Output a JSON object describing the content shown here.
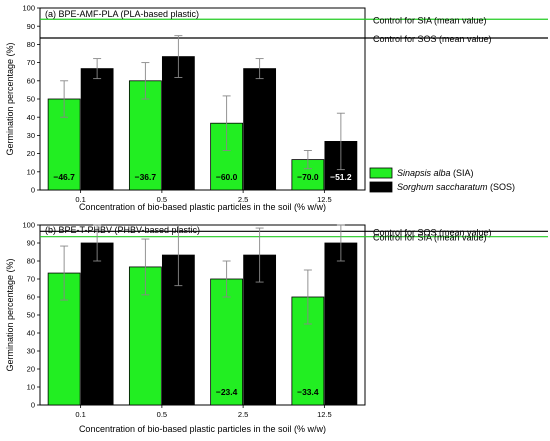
{
  "colors": {
    "sia": "#22ee22",
    "sos": "#000000",
    "sia_control": "#22cc22",
    "sos_control": "#000000"
  },
  "legend": {
    "items": [
      {
        "species": "Sinapsis alba",
        "abbr": " (SIA)",
        "color": "#22ee22"
      },
      {
        "species": "Sorghum saccharatum",
        "abbr": " (SOS)",
        "color": "#000000"
      }
    ]
  },
  "chart_data": [
    {
      "type": "bar",
      "title": "(a) BPE-AMF-PLA (PLA-based plastic)",
      "xlabel": "Concentration of bio-based plastic particles in the soil (% w/w)",
      "ylabel": "Germination percentage (%)",
      "ylim": [
        0,
        100
      ],
      "yticks": [
        0,
        10,
        20,
        30,
        40,
        50,
        60,
        70,
        80,
        90,
        100
      ],
      "categories": [
        "0.1",
        "0.5",
        "2.5",
        "12.5"
      ],
      "series": [
        {
          "name": "SIA",
          "values": [
            50,
            60,
            36.7,
            16.7
          ],
          "errors": [
            10,
            10,
            15,
            5
          ]
        },
        {
          "name": "SOS",
          "values": [
            66.7,
            73.3,
            66.7,
            26.7
          ],
          "errors": [
            5.5,
            11.5,
            5.5,
            15.5
          ]
        }
      ],
      "controls": [
        {
          "label": "Control for SIA (mean value)",
          "value": 93.8,
          "series": "SIA"
        },
        {
          "label": "Control for SOS (mean value)",
          "value": 83.5,
          "series": "SOS"
        }
      ],
      "annotations": [
        {
          "category": "0.1",
          "series": "SIA",
          "text": "−46.7"
        },
        {
          "category": "0.5",
          "series": "SIA",
          "text": "−36.7"
        },
        {
          "category": "2.5",
          "series": "SIA",
          "text": "−60.0"
        },
        {
          "category": "12.5",
          "series": "SIA",
          "text": "−70.0"
        },
        {
          "category": "12.5",
          "series": "SOS",
          "text": "−51.2"
        }
      ]
    },
    {
      "type": "bar",
      "title": "(b) BPE-T-PHBV (PHBV-based plastic)",
      "xlabel": "Concentration of bio-based plastic particles in the soil (% w/w)",
      "ylabel": "Germination percentage (%)",
      "ylim": [
        0,
        100
      ],
      "yticks": [
        0,
        10,
        20,
        30,
        40,
        50,
        60,
        70,
        80,
        90,
        100
      ],
      "categories": [
        "0.1",
        "0.5",
        "2.5",
        "12.5"
      ],
      "series": [
        {
          "name": "SIA",
          "values": [
            73.3,
            76.7,
            70,
            60
          ],
          "errors": [
            15,
            15.5,
            10,
            15
          ]
        },
        {
          "name": "SOS",
          "values": [
            90,
            83.3,
            83.3,
            90
          ],
          "errors": [
            10,
            17,
            15,
            10
          ]
        }
      ],
      "controls": [
        {
          "label": "Control for SOS (mean value)",
          "value": 96.5,
          "series": "SOS"
        },
        {
          "label": "Control for SIA (mean value)",
          "value": 93.5,
          "series": "SIA"
        }
      ],
      "annotations": [
        {
          "category": "2.5",
          "series": "SIA",
          "text": "−23.4"
        },
        {
          "category": "12.5",
          "series": "SIA",
          "text": "−33.4"
        }
      ]
    }
  ]
}
